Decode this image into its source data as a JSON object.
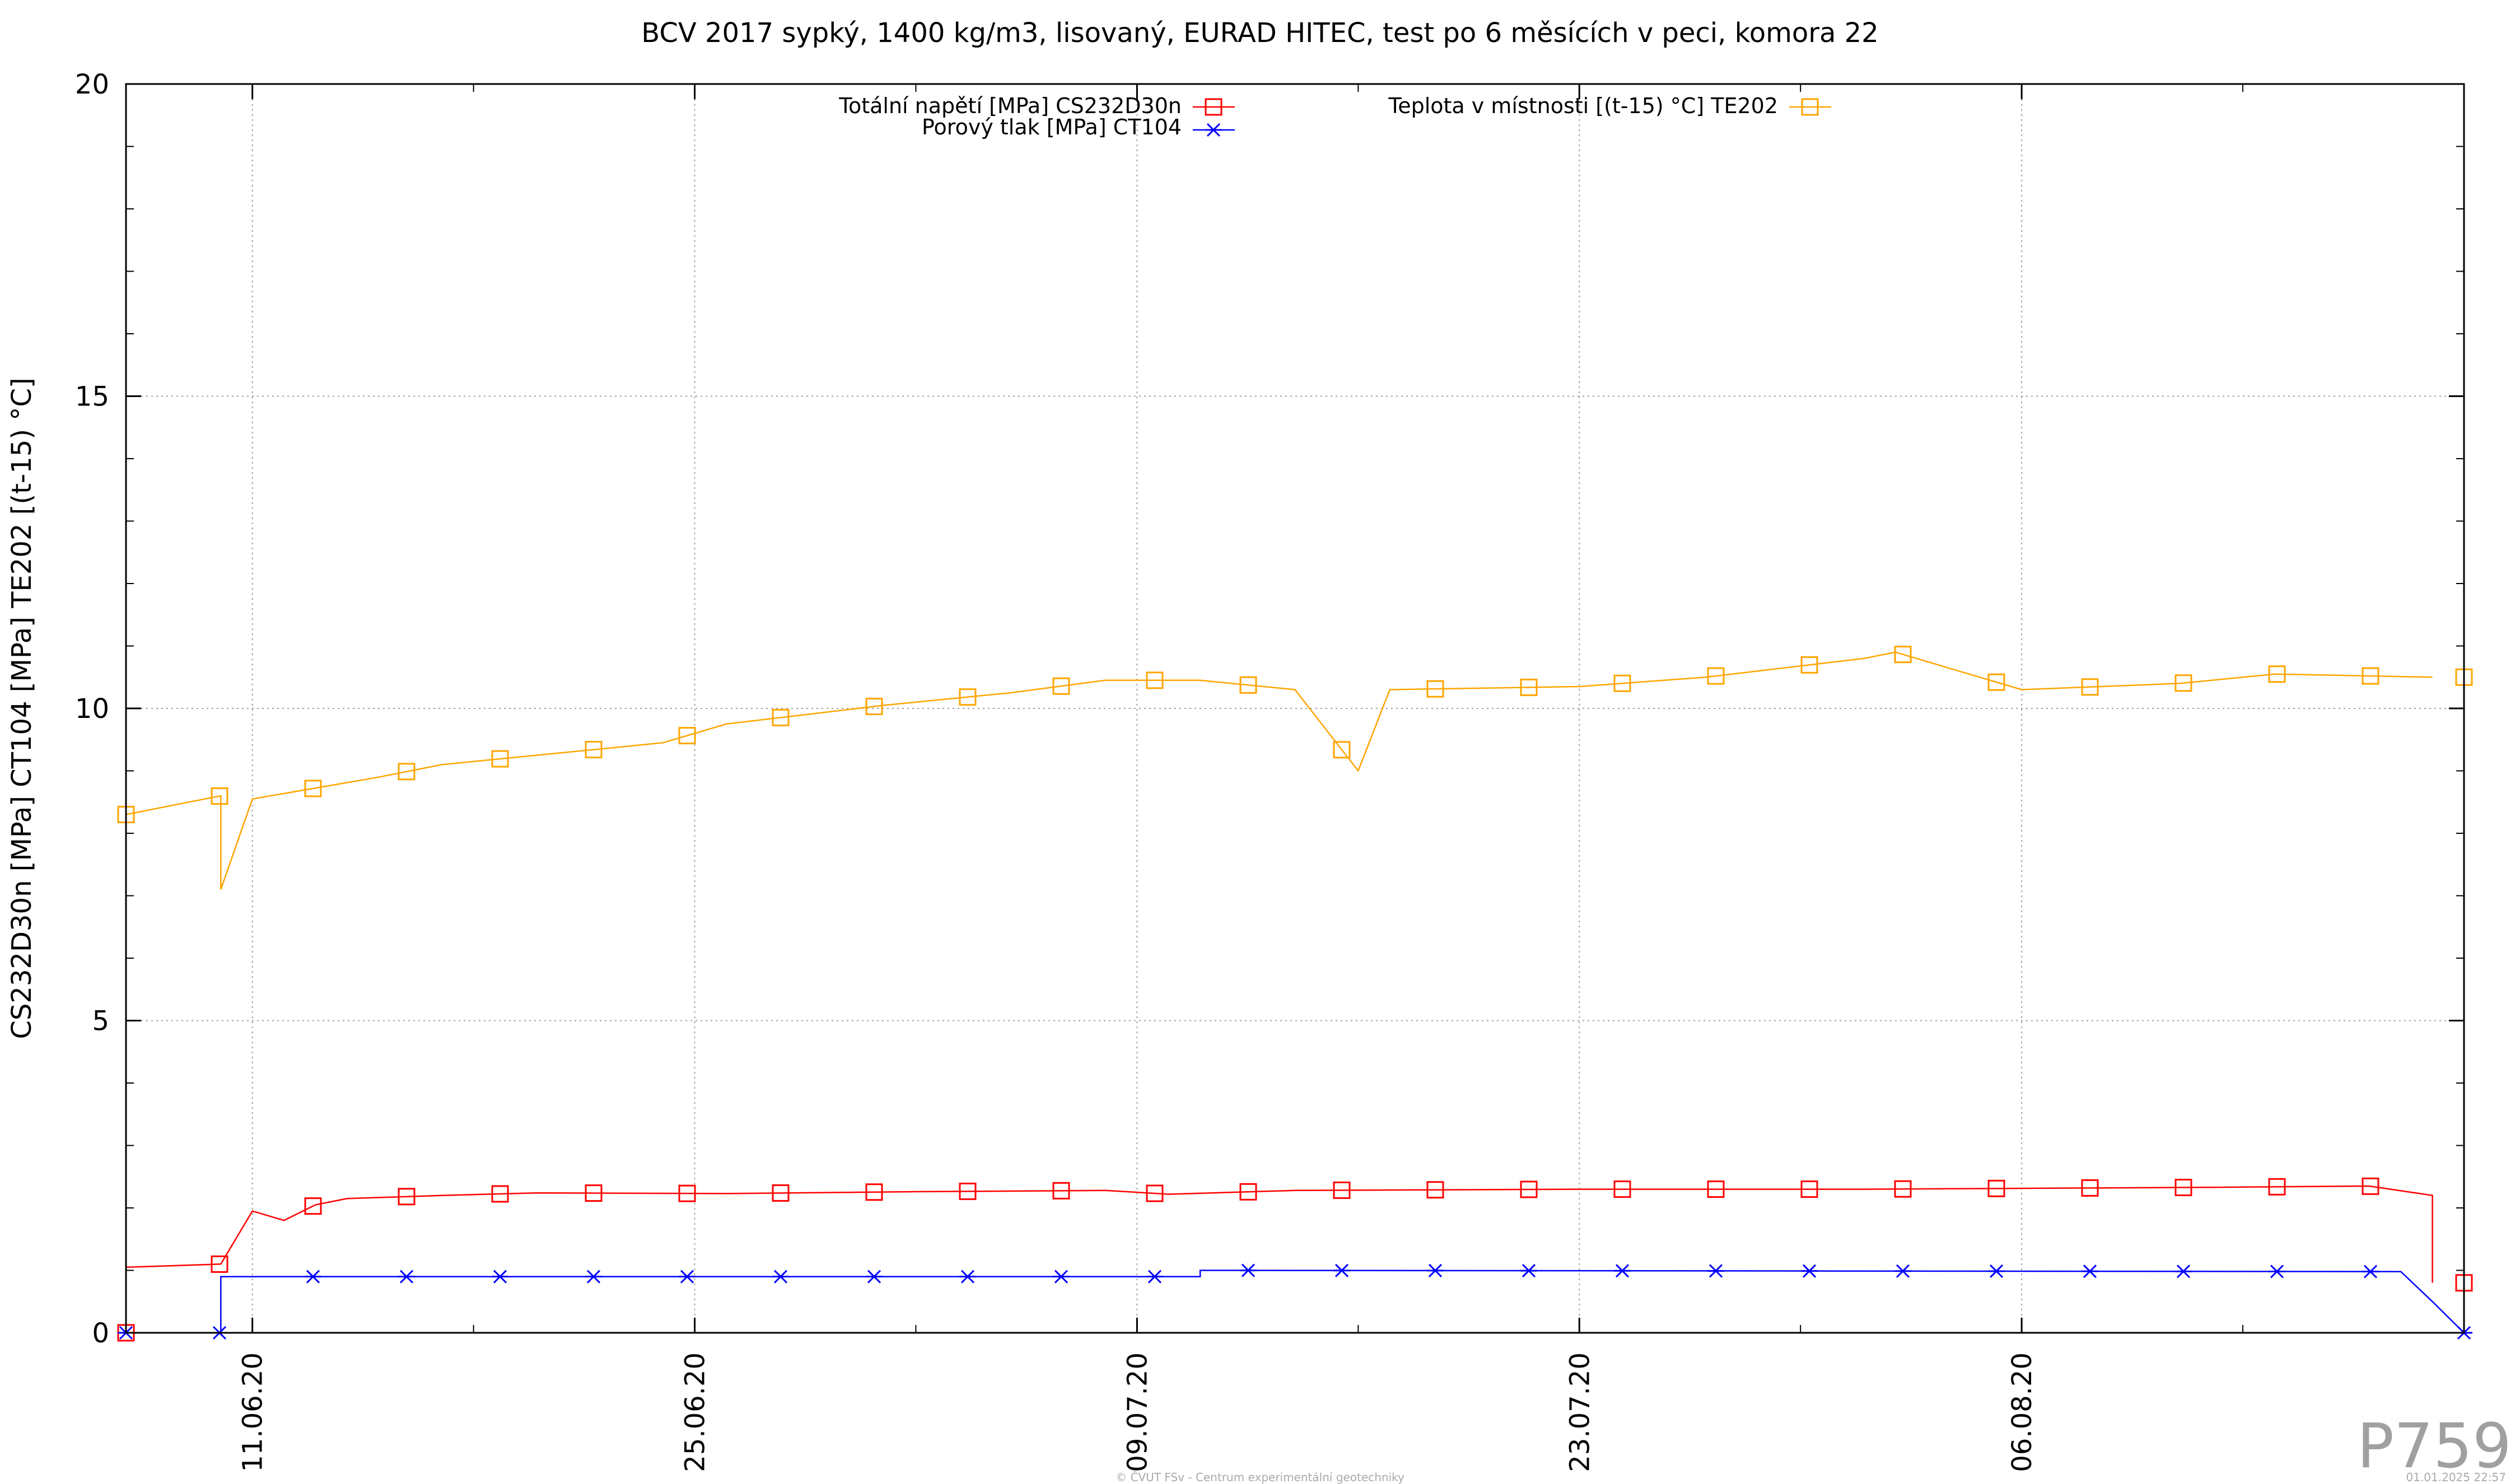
{
  "chart_data": {
    "type": "line",
    "title": "BCV 2017 sypký, 1400 kg/m3, lisovaný, EURAD HITEC, test po 6 měsících v peci, komora 22",
    "ylabel": "CS232D30n [MPa] CT104 [MPa] TE202 [(t-15) °C]",
    "xlabel": "",
    "x_range": [
      "2020-06-07",
      "2020-08-20"
    ],
    "ylim": [
      0,
      20
    ],
    "y_ticks": [
      0,
      5,
      10,
      15,
      20
    ],
    "x_ticks": [
      "11.06.20",
      "25.06.20",
      "09.07.20",
      "23.07.20",
      "06.08.20"
    ],
    "grid": true,
    "legend_position": "top",
    "series": [
      {
        "name": "Totální napětí [MPa] CS232D30n",
        "color": "#ff0000",
        "marker": "square",
        "points": [
          [
            "2020-06-07",
            0.0
          ],
          [
            "2020-06-07",
            1.05
          ],
          [
            "2020-06-10",
            1.1
          ],
          [
            "2020-06-11",
            1.95
          ],
          [
            "2020-06-12",
            1.8
          ],
          [
            "2020-06-13",
            2.05
          ],
          [
            "2020-06-14",
            2.15
          ],
          [
            "2020-06-17",
            2.2
          ],
          [
            "2020-06-20",
            2.24
          ],
          [
            "2020-06-26",
            2.23
          ],
          [
            "2020-07-02",
            2.26
          ],
          [
            "2020-07-08",
            2.28
          ],
          [
            "2020-07-10",
            2.22
          ],
          [
            "2020-07-14",
            2.28
          ],
          [
            "2020-07-23",
            2.3
          ],
          [
            "2020-08-01",
            2.3
          ],
          [
            "2020-08-12",
            2.33
          ],
          [
            "2020-08-17",
            2.35
          ],
          [
            "2020-08-19",
            2.2
          ],
          [
            "2020-08-19",
            0.8
          ]
        ]
      },
      {
        "name": "Porový tlak [MPa] CT104",
        "color": "#0000ff",
        "marker": "star",
        "points": [
          [
            "2020-06-07",
            0.0
          ],
          [
            "2020-06-10",
            0.0
          ],
          [
            "2020-06-10",
            0.9
          ],
          [
            "2020-07-11",
            0.9
          ],
          [
            "2020-07-11",
            1.0
          ],
          [
            "2020-08-18",
            0.98
          ],
          [
            "2020-08-19",
            0.5
          ],
          [
            "2020-08-20",
            0.0
          ]
        ]
      },
      {
        "name": "Teplota v místnosti [(t-15) °C] TE202",
        "color": "#ffa500",
        "marker": "square",
        "points": [
          [
            "2020-06-07",
            8.3
          ],
          [
            "2020-06-10",
            8.6
          ],
          [
            "2020-06-10",
            7.1
          ],
          [
            "2020-06-11",
            8.55
          ],
          [
            "2020-06-15",
            8.9
          ],
          [
            "2020-06-17",
            9.1
          ],
          [
            "2020-06-24",
            9.45
          ],
          [
            "2020-06-26",
            9.75
          ],
          [
            "2020-07-01",
            10.05
          ],
          [
            "2020-07-05",
            10.25
          ],
          [
            "2020-07-08",
            10.45
          ],
          [
            "2020-07-11",
            10.45
          ],
          [
            "2020-07-14",
            10.3
          ],
          [
            "2020-07-16",
            9.0
          ],
          [
            "2020-07-17",
            10.3
          ],
          [
            "2020-07-23",
            10.35
          ],
          [
            "2020-07-27",
            10.5
          ],
          [
            "2020-08-01",
            10.8
          ],
          [
            "2020-08-02",
            10.9
          ],
          [
            "2020-08-06",
            10.3
          ],
          [
            "2020-08-11",
            10.4
          ],
          [
            "2020-08-14",
            10.55
          ],
          [
            "2020-08-19",
            10.5
          ]
        ]
      }
    ]
  },
  "watermark": "P759",
  "footer": {
    "credit": "© ČVUT FSv - Centrum experimentální geotechniky",
    "timestamp": "01.01.2025 22:57"
  }
}
